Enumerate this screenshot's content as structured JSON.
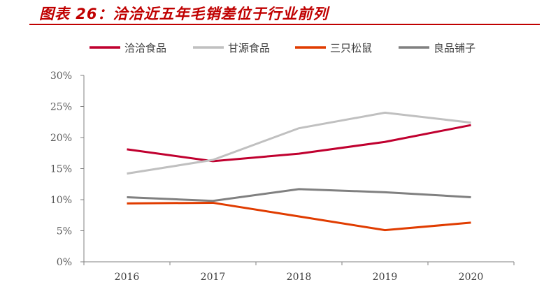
{
  "title": "图表 26：洽洽近五年毛销差位于行业前列",
  "chart_data": {
    "type": "line",
    "title": "图表 26：洽洽近五年毛销差位于行业前列",
    "categories": [
      "2016",
      "2017",
      "2018",
      "2019",
      "2020"
    ],
    "ylim": [
      0,
      30
    ],
    "yticks": [
      "0%",
      "5%",
      "10%",
      "15%",
      "20%",
      "25%",
      "30%"
    ],
    "ytick_values": [
      0,
      5,
      10,
      15,
      20,
      25,
      30
    ],
    "grid": false,
    "legend": "top",
    "series": [
      {
        "name": "洽洽食品",
        "color": "#c0002f",
        "values": [
          18.1,
          16.2,
          17.4,
          19.3,
          22.0
        ]
      },
      {
        "name": "甘源食品",
        "color": "#c0c0c0",
        "values": [
          14.2,
          16.4,
          21.5,
          24.0,
          22.4
        ]
      },
      {
        "name": "三只松鼠",
        "color": "#e03c00",
        "values": [
          9.4,
          9.5,
          7.3,
          5.1,
          6.3
        ]
      },
      {
        "name": "良品铺子",
        "color": "#808080",
        "values": [
          10.4,
          9.8,
          11.7,
          11.2,
          10.4
        ]
      }
    ]
  }
}
